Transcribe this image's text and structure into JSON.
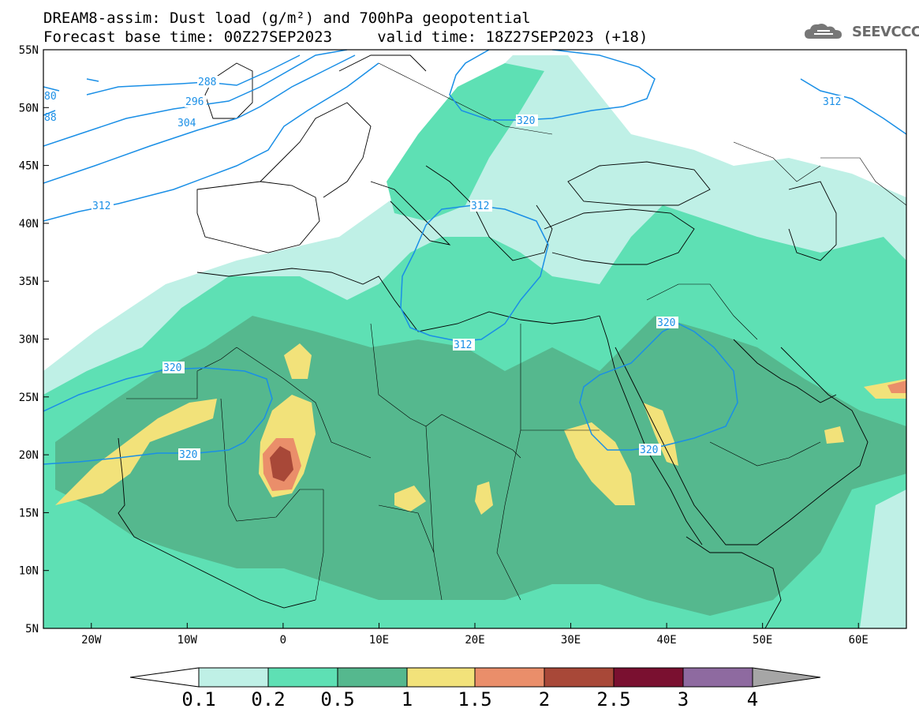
{
  "title": {
    "line1": "DREAM8-assim: Dust load (g/m²) and 700hPa geopotential",
    "line2": "Forecast base time: 00Z27SEP2023     valid time: 18Z27SEP2023 (+18)"
  },
  "logo": {
    "text": "SEEVCCC",
    "icon": "cloud-logo-icon"
  },
  "map": {
    "lon_range": [
      -25,
      65
    ],
    "lat_range": [
      5,
      55
    ],
    "lat_ticks": [
      "5N",
      "10N",
      "15N",
      "20N",
      "25N",
      "30N",
      "35N",
      "40N",
      "45N",
      "50N",
      "55N"
    ],
    "lon_ticks": [
      "20W",
      "10W",
      "0",
      "10E",
      "20E",
      "30E",
      "40E",
      "50E",
      "60E"
    ],
    "contour_color": "#1a8fe6",
    "contour_labels": [
      "288",
      "296",
      "304",
      "312",
      "312",
      "312",
      "320",
      "320",
      "320",
      "320",
      "312",
      "80",
      "88"
    ]
  },
  "colorbar": {
    "labels": [
      "0.1",
      "0.2",
      "0.5",
      "1",
      "1.5",
      "2",
      "2.5",
      "3",
      "4"
    ],
    "colors": [
      "#ffffff",
      "#bff0e6",
      "#5ee0b4",
      "#55b88e",
      "#f2e27a",
      "#ea8e6a",
      "#a84838",
      "#7a1030",
      "#8e6aa0",
      "#a6a6a6"
    ]
  }
}
